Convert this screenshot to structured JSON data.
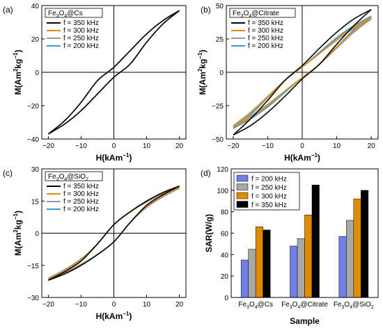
{
  "chart_data": [
    {
      "panel_label": "(a)",
      "type": "line",
      "legend_title": "Fe3O4@Cs",
      "legend_title_parts": {
        "pre": "Fe",
        "sub1": "3",
        "mid": "O",
        "sub2": "4",
        "post": "@Cs"
      },
      "xlabel": {
        "main": "H(kAm",
        "sup": "−1",
        "end": ")"
      },
      "ylabel": {
        "main": "M(Am",
        "sup1": "2",
        "mid": "kg",
        "sup2": "−1",
        "end": ")"
      },
      "xlim": [
        -22,
        22
      ],
      "ylim": [
        -40,
        40
      ],
      "xticks": [
        -20,
        -10,
        0,
        10,
        20
      ],
      "yticks": [
        -40,
        -20,
        0,
        20,
        40
      ],
      "legend_placement": "top-left",
      "series": [
        {
          "name": "f = 350 kHz",
          "color": "#000000",
          "x": [
            -20,
            -15,
            -10,
            -5,
            0,
            5,
            10,
            15,
            20
          ],
          "upper": [
            -37,
            -29,
            -18,
            -5,
            3,
            13,
            23,
            31,
            37
          ],
          "lower": [
            -37,
            -31,
            -23,
            -13,
            -3,
            5,
            18,
            29,
            37
          ]
        },
        {
          "name": "f = 300 kHz",
          "color": "#E08A00",
          "x": [
            -20,
            -15,
            -10,
            -5,
            0,
            5,
            10,
            15,
            20
          ],
          "upper": [
            -37,
            -29,
            -18,
            -5,
            3,
            13,
            23,
            31,
            37
          ],
          "lower": [
            -37,
            -31,
            -23,
            -13,
            -3,
            5,
            18,
            29,
            37
          ]
        },
        {
          "name": "f = 250 kHz",
          "color": "#999999",
          "x": [
            -20,
            -15,
            -10,
            -5,
            0,
            5,
            10,
            15,
            20
          ],
          "upper": [
            -37,
            -29,
            -18,
            -5,
            3,
            13,
            23,
            31,
            37
          ],
          "lower": [
            -37,
            -31,
            -23,
            -13,
            -3,
            5,
            18,
            29,
            37
          ]
        },
        {
          "name": "f = 200 kHz",
          "color": "#3A9AD9",
          "x": [
            -20,
            -15,
            -10,
            -5,
            0,
            5,
            10,
            15,
            20
          ],
          "upper": [
            -37,
            -29,
            -18,
            -5,
            3,
            13,
            23,
            31,
            37
          ],
          "lower": [
            -37,
            -31,
            -23,
            -13,
            -3,
            5,
            18,
            29,
            37
          ]
        }
      ]
    },
    {
      "panel_label": "(b)",
      "type": "line",
      "legend_title": "Fe3O4@Citrate",
      "legend_title_parts": {
        "pre": "Fe",
        "sub1": "3",
        "mid": "O",
        "sub2": "4",
        "post": "@Citrate"
      },
      "xlabel": {
        "main": "H(kAm",
        "sup": "−1",
        "end": ")"
      },
      "ylabel": {
        "main": "M(Am",
        "sup1": "2",
        "mid": "kg",
        "sup2": "−1",
        "end": ")"
      },
      "xlim": [
        -22,
        22
      ],
      "ylim": [
        -50,
        50
      ],
      "xticks": [
        -20,
        -10,
        0,
        10,
        20
      ],
      "yticks": [
        -50,
        -25,
        0,
        25,
        50
      ],
      "legend_placement": "top-left",
      "series": [
        {
          "name": "f = 350 kHz",
          "color": "#000000",
          "x": [
            -20,
            -15,
            -10,
            -5,
            0,
            5,
            10,
            15,
            20
          ],
          "upper": [
            -47,
            -35,
            -21,
            -6,
            5,
            18,
            30,
            40,
            47
          ],
          "lower": [
            -47,
            -40,
            -30,
            -18,
            -5,
            6,
            21,
            35,
            47
          ]
        },
        {
          "name": "f = 300 kHz",
          "color": "#E08A00",
          "x": [
            -20,
            -15,
            -10,
            -5,
            0,
            5,
            10,
            15,
            20
          ],
          "upper": [
            -41,
            -31,
            -19,
            -6,
            4,
            14,
            25,
            34,
            41
          ],
          "lower": [
            -41,
            -34,
            -25,
            -14,
            -4,
            6,
            19,
            31,
            41
          ]
        },
        {
          "name": "f = 250 kHz",
          "color": "#999999",
          "x": [
            -20,
            -15,
            -10,
            -5,
            0,
            5,
            10,
            15,
            20
          ],
          "upper": [
            -40,
            -30,
            -18,
            -6,
            4,
            14,
            24,
            33,
            40
          ],
          "lower": [
            -40,
            -33,
            -24,
            -14,
            -4,
            6,
            18,
            30,
            40
          ]
        },
        {
          "name": "f = 200 kHz",
          "color": "#3A9AD9",
          "x": [
            -20,
            -15,
            -10,
            -5,
            0,
            5,
            10,
            15,
            20
          ],
          "upper": [
            -42,
            -32,
            -19,
            -6,
            4,
            15,
            26,
            35,
            42
          ],
          "lower": [
            -42,
            -35,
            -26,
            -15,
            -4,
            6,
            19,
            32,
            42
          ]
        }
      ]
    },
    {
      "panel_label": "(c)",
      "type": "line",
      "legend_title": "Fe3O4@SiO2",
      "legend_title_parts": {
        "pre": "Fe",
        "sub1": "3",
        "mid": "O",
        "sub2": "4",
        "post": "@SiO",
        "sub3": "2"
      },
      "xlabel": {
        "main": "H(kAm",
        "sup": "−1",
        "end": ")"
      },
      "ylabel": {
        "main": "M(Am",
        "sup1": "2",
        "mid": "kg",
        "sup2": "−1",
        "end": ")"
      },
      "xlim": [
        -22,
        22
      ],
      "ylim": [
        -30,
        30
      ],
      "xticks": [
        -20,
        -10,
        0,
        10,
        20
      ],
      "yticks": [
        -30,
        -15,
        0,
        15,
        30
      ],
      "legend_placement": "top-left",
      "series": [
        {
          "name": "f = 350 kHz",
          "color": "#000000",
          "x": [
            -20,
            -15,
            -10,
            -5,
            0,
            5,
            10,
            15,
            20
          ],
          "upper": [
            -22,
            -18,
            -13,
            -5,
            4,
            10,
            15,
            19,
            22
          ],
          "lower": [
            -22,
            -19,
            -15,
            -10,
            -4,
            5,
            13,
            18,
            22
          ]
        },
        {
          "name": "f = 300 kHz",
          "color": "#E08A00",
          "x": [
            -20,
            -15,
            -10,
            -5,
            0,
            5,
            10,
            15,
            20
          ],
          "upper": [
            -21.5,
            -17.5,
            -12.5,
            -5,
            4,
            10,
            15,
            19,
            21.5
          ],
          "lower": [
            -21.5,
            -19,
            -15,
            -10,
            -4,
            5,
            12.5,
            17.5,
            21.5
          ]
        },
        {
          "name": "f = 250 kHz",
          "color": "#999999",
          "x": [
            -20,
            -15,
            -10,
            -5,
            0,
            5,
            10,
            15,
            20
          ],
          "upper": [
            -21,
            -17,
            -12,
            -5,
            4,
            10,
            14.5,
            18.5,
            21
          ],
          "lower": [
            -21,
            -18.5,
            -14.5,
            -10,
            -4,
            5,
            12,
            17,
            21
          ]
        },
        {
          "name": "f = 200 kHz",
          "color": "#3A9AD9",
          "x": [
            -20,
            -15,
            -10,
            -5,
            0,
            5,
            10,
            15,
            20
          ],
          "upper": [
            -21,
            -17,
            -12,
            -5,
            4,
            10,
            14.5,
            18.5,
            21
          ],
          "lower": [
            -21,
            -18.5,
            -14.5,
            -10,
            -4,
            5,
            12,
            17,
            21
          ]
        }
      ]
    },
    {
      "panel_label": "(d)",
      "type": "bar",
      "categories": [
        {
          "pre": "Fe",
          "sub1": "3",
          "mid": "O",
          "sub2": "4",
          "post": "@Cs"
        },
        {
          "pre": "Fe",
          "sub1": "3",
          "mid": "O",
          "sub2": "4",
          "post": "@Citrate"
        },
        {
          "pre": "Fe",
          "sub1": "3",
          "mid": "O",
          "sub2": "4",
          "post": "@SiO",
          "sub3": "2"
        }
      ],
      "xlabel": "Sample",
      "ylabel": "SAR(W/g)",
      "ylim": [
        0,
        120
      ],
      "yticks": [
        0,
        20,
        40,
        60,
        80,
        100,
        120
      ],
      "legend_placement": "top-left",
      "series": [
        {
          "name": "f = 200 kHz",
          "color": "#6F7FE8",
          "values": [
            35,
            48,
            57
          ]
        },
        {
          "name": "f = 250 kHz",
          "color": "#A8A8A8",
          "values": [
            45,
            55,
            72
          ]
        },
        {
          "name": "f = 300 kHz",
          "color": "#E08A00",
          "values": [
            66,
            77,
            92
          ]
        },
        {
          "name": "f = 350 kHz",
          "color": "#000000",
          "values": [
            63,
            105,
            100
          ]
        }
      ]
    }
  ]
}
